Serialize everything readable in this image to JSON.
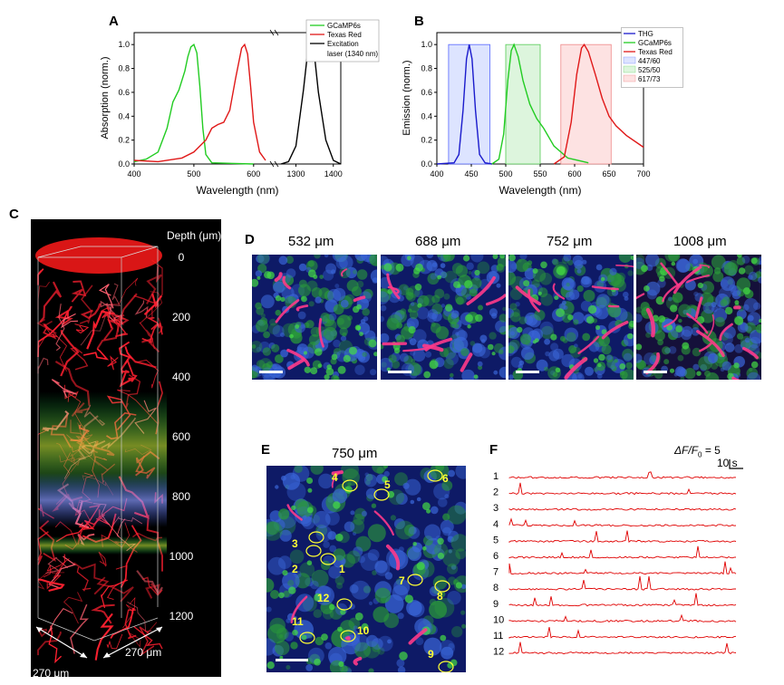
{
  "panels": {
    "A": {
      "letter": "A",
      "ylabel": "Absorption (norm.)",
      "xlabel": "Wavelength (nm)",
      "xticks": [
        "400",
        "500",
        "600",
        "1300",
        "1400"
      ],
      "yticks": [
        "0.0",
        "0.2",
        "0.4",
        "0.6",
        "0.8",
        "1.0"
      ],
      "legend": [
        "GCaMP6s",
        "Texas Red",
        "Excitation",
        "laser (1340 nm)"
      ]
    },
    "B": {
      "letter": "B",
      "ylabel": "Emission (norm.)",
      "xlabel": "Wavelength (nm)",
      "xticks": [
        "400",
        "450",
        "500",
        "550",
        "600",
        "650",
        "700"
      ],
      "yticks": [
        "0.0",
        "0.2",
        "0.4",
        "0.6",
        "0.8",
        "1.0"
      ],
      "legend": [
        "THG",
        "GCaMP6s",
        "Texas Red",
        "447/60",
        "525/50",
        "617/73"
      ]
    },
    "C": {
      "letter": "C",
      "depth_title": "Depth (μm)",
      "depth_ticks": [
        "0",
        "200",
        "400",
        "600",
        "800",
        "1000",
        "1200"
      ],
      "dim_left": "270 μm",
      "dim_right": "270 μm"
    },
    "D": {
      "letter": "D",
      "depths": [
        "532 μm",
        "688 μm",
        "752 μm",
        "1008 μm"
      ]
    },
    "E": {
      "letter": "E",
      "title": "750 μm",
      "cells": [
        "1",
        "2",
        "3",
        "4",
        "5",
        "6",
        "7",
        "8",
        "9",
        "10",
        "11",
        "12"
      ]
    },
    "F": {
      "letter": "F",
      "scale_label": "ΔF/F",
      "scale_sub": "0",
      "scale_value": "= 5",
      "time_label": "10 s",
      "traces": [
        "1",
        "2",
        "3",
        "4",
        "5",
        "6",
        "7",
        "8",
        "9",
        "10",
        "11",
        "12"
      ]
    }
  },
  "colors": {
    "gcamp": "#22cc22",
    "texas_red": "#e01818",
    "laser": "#000000",
    "thg": "#1a1acc",
    "filter_blue": "#dde4ff",
    "filter_green": "#ddf5dd",
    "filter_red": "#fde2e2",
    "trace": "#e00000",
    "cell_outline": "#ffff33"
  },
  "chart_data": [
    {
      "type": "line",
      "title": "",
      "xlabel": "Wavelength (nm)",
      "ylabel": "Absorption (norm.)",
      "ylim": [
        0,
        1.1
      ],
      "x_segments": [
        [
          400,
          620
        ],
        [
          1260,
          1420
        ]
      ],
      "series": [
        {
          "name": "GCaMP6s",
          "x": [
            400,
            420,
            440,
            455,
            465,
            475,
            485,
            490,
            495,
            500,
            505,
            510,
            515,
            520,
            530,
            600
          ],
          "y": [
            0.02,
            0.04,
            0.1,
            0.3,
            0.52,
            0.62,
            0.78,
            0.9,
            0.98,
            1.0,
            0.93,
            0.65,
            0.3,
            0.08,
            0.01,
            0.0
          ]
        },
        {
          "name": "Texas Red",
          "x": [
            400,
            440,
            480,
            500,
            520,
            530,
            540,
            550,
            560,
            570,
            580,
            585,
            590,
            595,
            600,
            610,
            620
          ],
          "y": [
            0.03,
            0.02,
            0.05,
            0.1,
            0.2,
            0.3,
            0.33,
            0.35,
            0.45,
            0.72,
            0.97,
            1.0,
            0.92,
            0.65,
            0.35,
            0.1,
            0.03
          ]
        },
        {
          "name": "Excitation laser (1340 nm)",
          "x": [
            1260,
            1280,
            1300,
            1320,
            1330,
            1340,
            1350,
            1360,
            1370,
            1380,
            1400,
            1420
          ],
          "y": [
            0.0,
            0.02,
            0.15,
            0.62,
            0.9,
            1.0,
            0.9,
            0.6,
            0.4,
            0.2,
            0.03,
            0.0
          ]
        }
      ]
    },
    {
      "type": "line",
      "title": "",
      "xlabel": "Wavelength (nm)",
      "ylabel": "Emission (norm.)",
      "xlim": [
        400,
        700
      ],
      "ylim": [
        0,
        1.1
      ],
      "filters": [
        {
          "name": "447/60",
          "from": 417,
          "to": 477
        },
        {
          "name": "525/50",
          "from": 500,
          "to": 550
        },
        {
          "name": "617/73",
          "from": 580,
          "to": 653
        }
      ],
      "series": [
        {
          "name": "THG",
          "x": [
            400,
            425,
            432,
            438,
            443,
            447,
            451,
            456,
            462,
            470,
            480
          ],
          "y": [
            0.0,
            0.01,
            0.08,
            0.45,
            0.88,
            1.0,
            0.88,
            0.45,
            0.08,
            0.01,
            0.0
          ]
        },
        {
          "name": "GCaMP6s",
          "x": [
            480,
            490,
            497,
            503,
            508,
            512,
            518,
            525,
            535,
            545,
            555,
            570,
            590,
            620
          ],
          "y": [
            0.0,
            0.04,
            0.25,
            0.7,
            0.95,
            1.0,
            0.9,
            0.7,
            0.5,
            0.38,
            0.3,
            0.15,
            0.05,
            0.01
          ]
        },
        {
          "name": "Texas Red",
          "x": [
            570,
            585,
            595,
            603,
            610,
            614,
            620,
            630,
            640,
            650,
            660,
            675,
            700
          ],
          "y": [
            0.0,
            0.06,
            0.35,
            0.75,
            0.97,
            1.0,
            0.94,
            0.75,
            0.55,
            0.4,
            0.32,
            0.24,
            0.14
          ]
        }
      ]
    }
  ]
}
